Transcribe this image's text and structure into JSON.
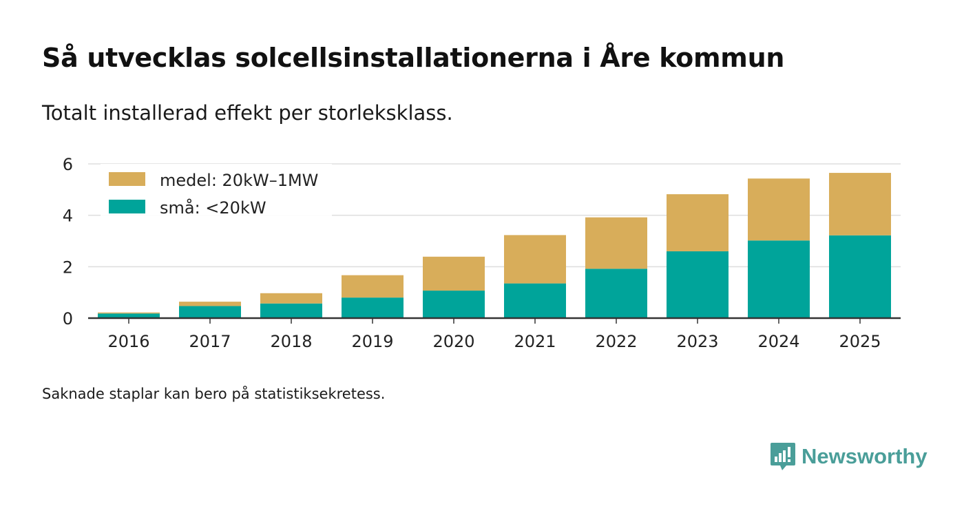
{
  "header": {
    "title": "Så utvecklas solcellsinstallationerna i Åre kommun",
    "subtitle": "Totalt installerad effekt per storleksklass."
  },
  "footer": {
    "note": "Saknade staplar kan bero på statistiksekretess.",
    "brand": "Newsworthy"
  },
  "colors": {
    "medel": "#d8ad5a",
    "sma": "#00a49a",
    "grid": "#dddddd",
    "axis": "#333333",
    "brand": "#4a9e99"
  },
  "chart_data": {
    "type": "bar",
    "stacked": true,
    "title": "Så utvecklas solcellsinstallationerna i Åre kommun",
    "subtitle": "Totalt installerad effekt per storleksklass.",
    "xlabel": "",
    "ylabel": "",
    "categories": [
      "2016",
      "2017",
      "2018",
      "2019",
      "2020",
      "2021",
      "2022",
      "2023",
      "2024",
      "2025"
    ],
    "series": [
      {
        "name": "små: <20kW",
        "key": "sma",
        "values": [
          0.18,
          0.47,
          0.57,
          0.8,
          1.07,
          1.35,
          1.92,
          2.6,
          3.02,
          3.22
        ]
      },
      {
        "name": "medel: 20kW–1MW",
        "key": "medel",
        "values": [
          0.04,
          0.17,
          0.4,
          0.87,
          1.32,
          1.88,
          2.0,
          2.22,
          2.41,
          2.43
        ]
      }
    ],
    "yticks": [
      0,
      2,
      4,
      6
    ],
    "ylim": [
      0,
      6
    ],
    "grid": true,
    "legend": {
      "position": "top-left",
      "items": [
        {
          "label": "medel: 20kW–1MW",
          "key": "medel"
        },
        {
          "label": "små: <20kW",
          "key": "sma"
        }
      ]
    }
  }
}
